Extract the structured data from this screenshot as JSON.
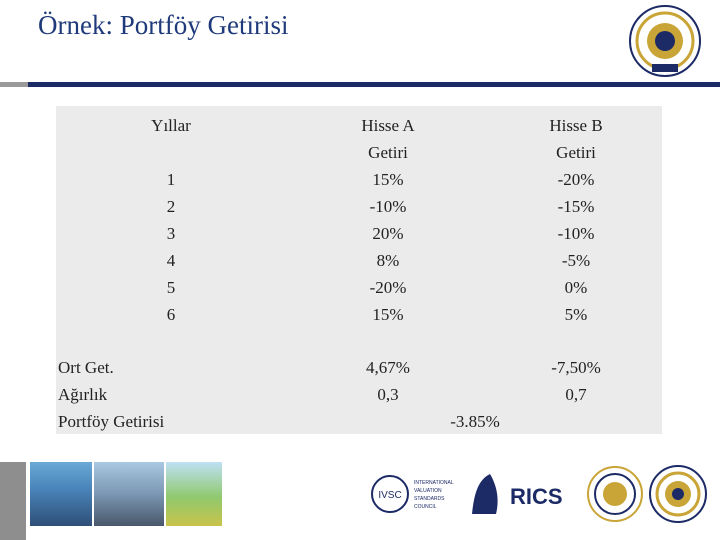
{
  "title": "Örnek: Portföy Getirisi",
  "table": {
    "header": {
      "years": "Yıllar",
      "stock_a": "Hisse A",
      "stock_b": "Hisse B"
    },
    "subheader": {
      "stock_a": "Getiri",
      "stock_b": "Getiri"
    },
    "years": [
      "1",
      "2",
      "3",
      "4",
      "5",
      "6"
    ],
    "returns_a": [
      "15%",
      "-10%",
      "20%",
      "8%",
      "-20%",
      "15%"
    ],
    "returns_b": [
      "-20%",
      "-15%",
      "-10%",
      "-5%",
      "0%",
      "5%"
    ],
    "summary_labels": [
      "Ort Get.",
      "Ağırlık",
      "Portföy Getirisi"
    ],
    "avg_a": "4,67%",
    "avg_b": "-7,50%",
    "weight_a": "0,3",
    "weight_b": "0,7",
    "portfolio_return": "-3.85%"
  },
  "logos": {
    "ivsc_line1": "INTERNATIONAL",
    "ivsc_line2": "VALUATION",
    "ivsc_line3": "STANDARDS",
    "ivsc_line4": "COUNCIL",
    "ivsc_mark": "IVSC",
    "rics": "RICS"
  },
  "colors": {
    "title": "#1f3a7a",
    "rule": "#1c2a66",
    "table_bg": "#ebebeb",
    "seal": "#c9a437"
  }
}
